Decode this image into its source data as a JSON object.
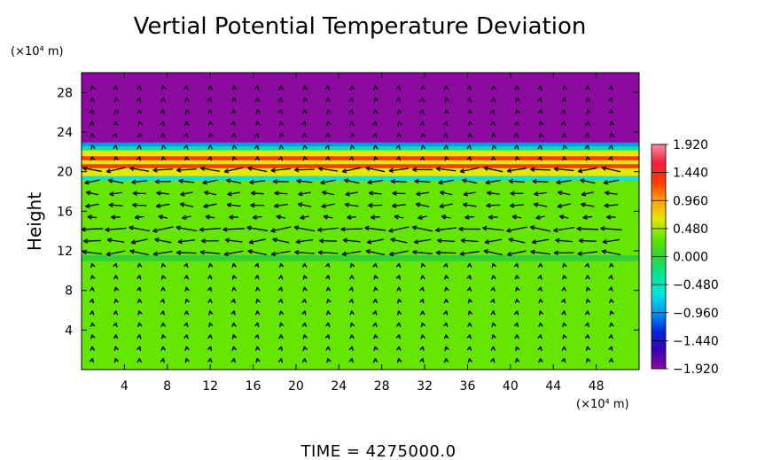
{
  "chart_data": {
    "type": "heatmap",
    "title": "Vertial Potential Temperature Deviation",
    "xlabel": "",
    "ylabel": "Height",
    "x_unit": "(×10⁴ m)",
    "y_unit": "(×10⁴ m)",
    "xlim": [
      0,
      52
    ],
    "ylim": [
      0,
      30
    ],
    "x_ticks": [
      "4",
      "8",
      "12",
      "16",
      "20",
      "24",
      "28",
      "32",
      "36",
      "40",
      "44",
      "48"
    ],
    "x_tick_values": [
      4,
      8,
      12,
      16,
      20,
      24,
      28,
      32,
      36,
      40,
      44,
      48
    ],
    "y_ticks": [
      "4",
      "8",
      "12",
      "16",
      "20",
      "24",
      "28"
    ],
    "y_tick_values": [
      4,
      8,
      12,
      16,
      20,
      24,
      28
    ],
    "colorbar": {
      "min": -1.92,
      "max": 1.92,
      "labels": [
        "1.920",
        "1.440",
        "0.960",
        "0.480",
        "0.000",
        "−0.480",
        "−0.960",
        "−1.440",
        "−1.920"
      ],
      "label_values": [
        1.92,
        1.44,
        0.96,
        0.48,
        0.0,
        -0.48,
        -0.96,
        -1.44,
        -1.92
      ],
      "stops": [
        "#8c0aa0",
        "#3c00b4",
        "#0028dc",
        "#0096f0",
        "#00e6dc",
        "#00e696",
        "#32d232",
        "#64e600",
        "#e6e600",
        "#ffa000",
        "#ff3c00",
        "#f01e3c",
        "#ff8ca0"
      ]
    },
    "field": {
      "bands": [
        {
          "y_from": 0,
          "y_to": 11,
          "value": 0.2
        },
        {
          "y_from": 11,
          "y_to": 11.6,
          "value": 0.1
        },
        {
          "y_from": 11.6,
          "y_to": 19.2,
          "value": 0.25
        },
        {
          "y_from": 19.2,
          "y_to": 19.6,
          "value": -0.7
        },
        {
          "y_from": 19.6,
          "y_to": 20.4,
          "value": 0.7
        },
        {
          "y_from": 20.4,
          "y_to": 20.8,
          "value": 1.3
        },
        {
          "y_from": 20.8,
          "y_to": 21.2,
          "value": 0.5
        },
        {
          "y_from": 21.2,
          "y_to": 21.6,
          "value": 1.4
        },
        {
          "y_from": 21.6,
          "y_to": 22.2,
          "value": 0.5
        },
        {
          "y_from": 22.2,
          "y_to": 22.6,
          "value": -0.2
        },
        {
          "y_from": 22.6,
          "y_to": 23.0,
          "value": -1.0
        },
        {
          "y_from": 23.0,
          "y_to": 30,
          "value": -1.92
        }
      ]
    },
    "wind_arrow_rows": [
      {
        "y": 12.0,
        "strength": 1.0
      },
      {
        "y": 13.2,
        "strength": 0.8
      },
      {
        "y": 14.2,
        "strength": 0.9
      },
      {
        "y": 16.2,
        "strength": 0.7
      },
      {
        "y": 17.4,
        "strength": 0.6
      },
      {
        "y": 18.6,
        "strength": 0.9
      },
      {
        "y": 20.0,
        "strength": 1.0
      }
    ],
    "annotation": "TIME  =  4275000.0"
  }
}
